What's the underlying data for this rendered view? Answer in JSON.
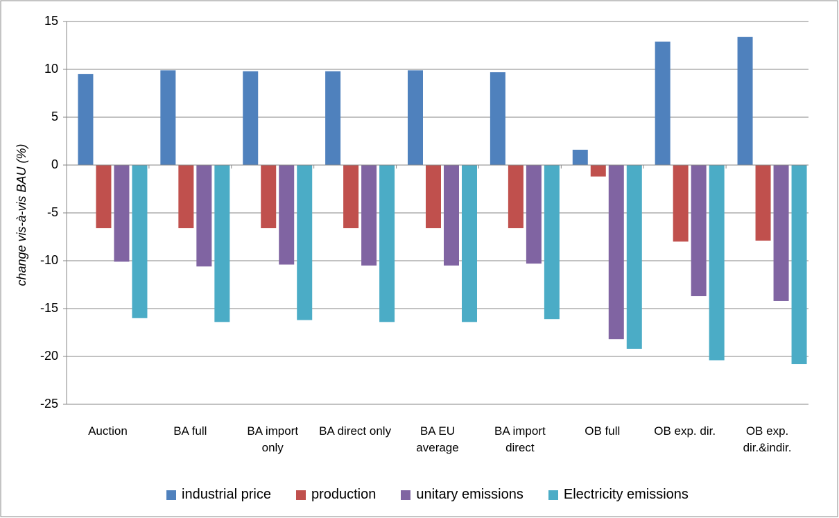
{
  "chart_data": {
    "type": "bar",
    "y_label": "change vis-à-vis BAU (%)",
    "categories": [
      "Auction",
      "BA full",
      "BA import only",
      "BA direct only",
      "BA EU average",
      "BA import direct",
      "OB full",
      "OB exp. dir.",
      "OB exp. dir.&indir."
    ],
    "series": [
      {
        "name": "industrial price",
        "color": "#4f81bd",
        "values": [
          9.5,
          9.9,
          9.8,
          9.8,
          9.9,
          9.7,
          1.6,
          12.9,
          13.4
        ]
      },
      {
        "name": "production",
        "color": "#c0504d",
        "values": [
          -6.6,
          -6.6,
          -6.6,
          -6.6,
          -6.6,
          -6.6,
          -1.2,
          -8.0,
          -7.9
        ]
      },
      {
        "name": "unitary emissions",
        "color": "#8064a2",
        "values": [
          -10.1,
          -10.6,
          -10.4,
          -10.5,
          -10.5,
          -10.3,
          -18.2,
          -13.7,
          -14.2
        ]
      },
      {
        "name": "Electricity emissions",
        "color": "#4bacc6",
        "values": [
          -16.0,
          -16.4,
          -16.2,
          -16.4,
          -16.4,
          -16.1,
          -19.2,
          -20.4,
          -20.8
        ]
      }
    ],
    "ylim": [
      -25,
      15
    ],
    "yticks": [
      -25,
      -20,
      -15,
      -10,
      -5,
      0,
      5,
      10,
      15
    ],
    "grid": true,
    "legend": "bottom"
  }
}
